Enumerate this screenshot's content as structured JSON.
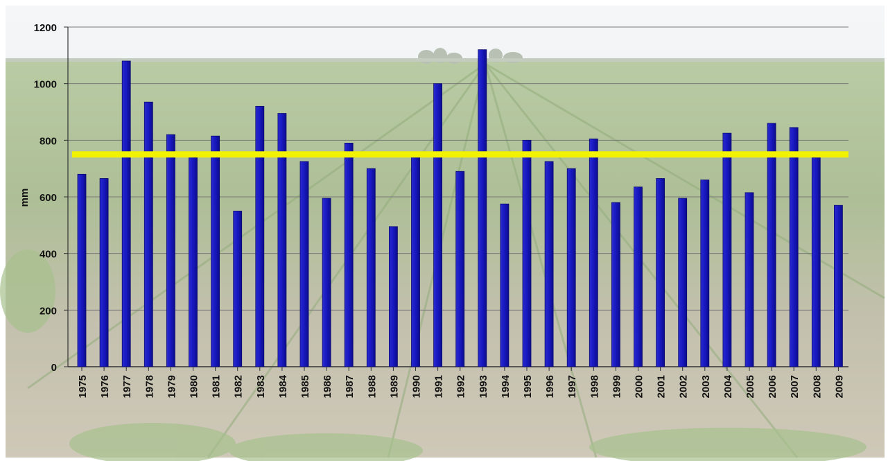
{
  "chart_data": {
    "type": "bar",
    "categories": [
      "1975",
      "1976",
      "1977",
      "1978",
      "1979",
      "1980",
      "1981",
      "1982",
      "1983",
      "1984",
      "1985",
      "1986",
      "1987",
      "1988",
      "1989",
      "1990",
      "1991",
      "1992",
      "1993",
      "1994",
      "1995",
      "1996",
      "1997",
      "1998",
      "1999",
      "2000",
      "2001",
      "2002",
      "2003",
      "2004",
      "2005",
      "2006",
      "2007",
      "2008",
      "2009"
    ],
    "series": [
      {
        "values": [
          680,
          665,
          1080,
          935,
          820,
          740,
          815,
          550,
          920,
          895,
          725,
          595,
          790,
          700,
          495,
          740,
          1000,
          690,
          1120,
          575,
          800,
          725,
          700,
          805,
          580,
          635,
          665,
          595,
          660,
          825,
          615,
          860,
          845,
          740,
          570
        ]
      }
    ],
    "reference_line": {
      "value": 750,
      "color": "#ffff00"
    },
    "ylabel": "mm",
    "yticks": [
      0,
      200,
      400,
      600,
      800,
      1000,
      1200
    ],
    "ylim": [
      0,
      1200
    ],
    "grid": true,
    "colors": {
      "bar": "#1515b8",
      "bar_edge": "#0a0a70",
      "reference_line": "#f2f200",
      "gridline": "#7a7a7a",
      "sky": "#eef2f3",
      "field": "#9fb88a",
      "soil": "#c9c2b2"
    },
    "background": "field-photo"
  }
}
